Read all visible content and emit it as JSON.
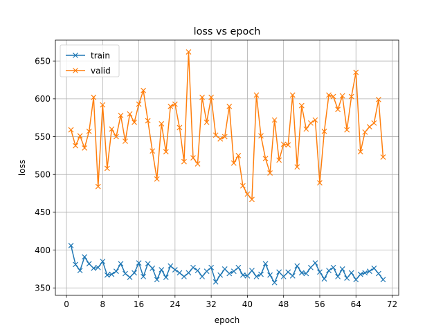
{
  "chart_data": {
    "type": "line",
    "title": "loss vs epoch",
    "xlabel": "epoch",
    "ylabel": "loss",
    "xlim": [
      -2.45,
      73.45
    ],
    "ylim": [
      340.2,
      677.6
    ],
    "xticks": [
      0,
      8,
      16,
      24,
      32,
      40,
      48,
      56,
      64,
      72
    ],
    "yticks": [
      350,
      400,
      450,
      500,
      550,
      600,
      650
    ],
    "grid": true,
    "legend_position": "top-left",
    "x": [
      1,
      2,
      3,
      4,
      5,
      6,
      7,
      8,
      9,
      10,
      11,
      12,
      13,
      14,
      15,
      16,
      17,
      18,
      19,
      20,
      21,
      22,
      23,
      24,
      25,
      26,
      27,
      28,
      29,
      30,
      31,
      32,
      33,
      34,
      35,
      36,
      37,
      38,
      39,
      40,
      41,
      42,
      43,
      44,
      45,
      46,
      47,
      48,
      49,
      50,
      51,
      52,
      53,
      54,
      55,
      56,
      57,
      58,
      59,
      60,
      61,
      62,
      63,
      64,
      65,
      66,
      67,
      68,
      69,
      70
    ],
    "series": [
      {
        "name": "train",
        "color": "#1f77b4",
        "values": [
          406,
          381,
          373,
          391,
          382,
          376,
          377,
          385,
          367,
          368,
          372,
          382,
          369,
          364,
          370,
          383,
          365,
          382,
          376,
          361,
          374,
          364,
          379,
          374,
          370,
          365,
          370,
          377,
          373,
          365,
          372,
          377,
          358,
          367,
          375,
          369,
          372,
          377,
          367,
          366,
          373,
          365,
          368,
          382,
          367,
          357,
          371,
          365,
          371,
          366,
          379,
          370,
          369,
          377,
          383,
          371,
          362,
          373,
          377,
          365,
          375,
          363,
          370,
          361,
          368,
          370,
          372,
          376,
          369,
          361
        ]
      },
      {
        "name": "valid",
        "color": "#ff7f0e",
        "values": [
          559,
          538,
          551,
          535,
          557,
          602,
          484,
          592,
          508,
          560,
          550,
          578,
          544,
          580,
          569,
          593,
          611,
          571,
          531,
          494,
          567,
          530,
          590,
          593,
          562,
          517,
          662,
          522,
          514,
          602,
          569,
          602,
          552,
          547,
          550,
          590,
          515,
          525,
          485,
          474,
          467,
          605,
          551,
          521,
          502,
          572,
          519,
          540,
          539,
          605,
          510,
          591,
          560,
          568,
          572,
          489,
          557,
          605,
          603,
          586,
          604,
          559,
          603,
          635,
          530,
          556,
          563,
          568,
          599,
          523
        ]
      }
    ]
  }
}
